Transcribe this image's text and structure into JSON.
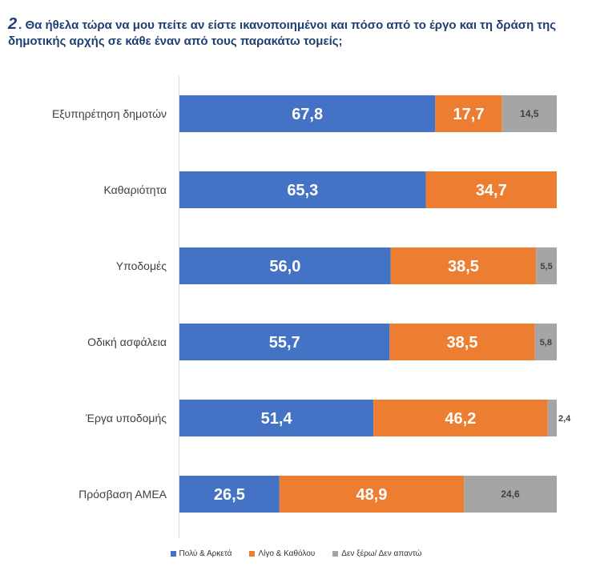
{
  "title": {
    "number": "2",
    "text": ". Θα ήθελα τώρα να μου πείτε αν είστε ικανοποιημένοι και πόσο από το έργο και τη δράση της δημοτικής αρχής σε κάθε έναν από τους παρακάτω τομείς;"
  },
  "chart_data": {
    "type": "bar",
    "orientation": "horizontal",
    "stacked": true,
    "percent": true,
    "categories": [
      "Εξυπηρέτηση δημοτών",
      "Καθαριότητα",
      "Υποδομές",
      "Οδική ασφάλεια",
      "Έργα υποδομής",
      "Πρόσβαση ΑΜΕΑ"
    ],
    "series": [
      {
        "name": "Πολύ & Αρκετά",
        "color": "#4472c4",
        "values": [
          67.8,
          65.3,
          56.0,
          55.7,
          51.4,
          26.5
        ]
      },
      {
        "name": "Λίγο & Καθόλου",
        "color": "#ed7d31",
        "values": [
          17.7,
          34.7,
          38.5,
          38.5,
          46.2,
          48.9
        ]
      },
      {
        "name": "Δεν ξέρω/ Δεν απαντώ",
        "color": "#a5a5a5",
        "values": [
          14.5,
          0,
          5.5,
          5.8,
          2.4,
          24.6
        ]
      }
    ],
    "data_labels": [
      [
        "67,8",
        "65,3",
        "56,0",
        "55,7",
        "51,4",
        "26,5"
      ],
      [
        "17,7",
        "34,7",
        "38,5",
        "38,5",
        "46,2",
        "48,9"
      ],
      [
        "14,5",
        "",
        "5,5",
        "5,8",
        "2,4",
        "24,6"
      ]
    ],
    "xlim": [
      0,
      100
    ],
    "grid": false,
    "legend_position": "bottom"
  }
}
